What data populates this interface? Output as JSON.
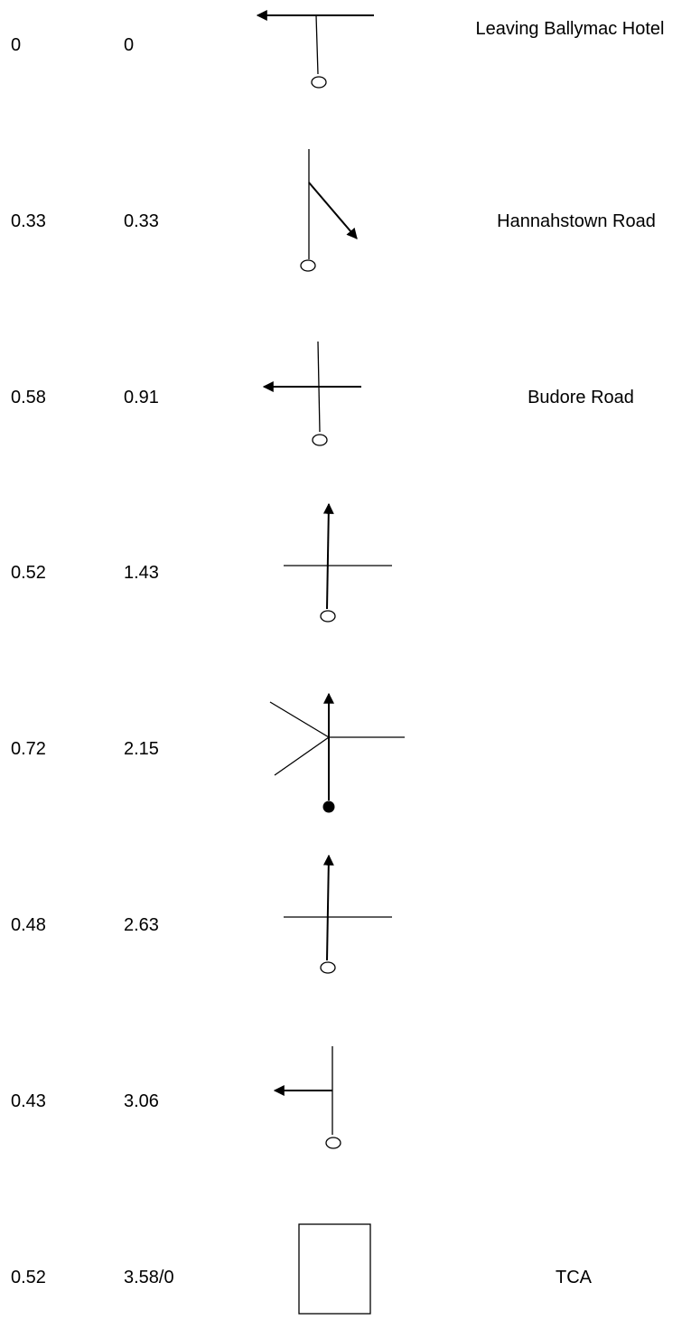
{
  "rows": [
    {
      "stage": "0",
      "total": "0",
      "label": "Leaving Ballymac Hotel",
      "sign": "t-junction-left"
    },
    {
      "stage": "0.33",
      "total": "0.33",
      "label": "Hannahstown Road",
      "sign": "fork-right"
    },
    {
      "stage": "0.58",
      "total": "0.91",
      "label": "Budore Road",
      "sign": "crossroads-left"
    },
    {
      "stage": "0.52",
      "total": "1.43",
      "label": "",
      "sign": "crossroads-straight"
    },
    {
      "stage": "0.72",
      "total": "2.15",
      "label": "",
      "sign": "complex-junction-straight"
    },
    {
      "stage": "0.48",
      "total": "2.63",
      "label": "",
      "sign": "crossroads-straight"
    },
    {
      "stage": "0.43",
      "total": "3.06",
      "label": "",
      "sign": "side-road-left"
    },
    {
      "stage": "0.52",
      "total": "3.58/0",
      "label": "TCA",
      "sign": "time-control-box"
    }
  ],
  "colors": {
    "ink": "#000000",
    "paper": "#ffffff"
  }
}
